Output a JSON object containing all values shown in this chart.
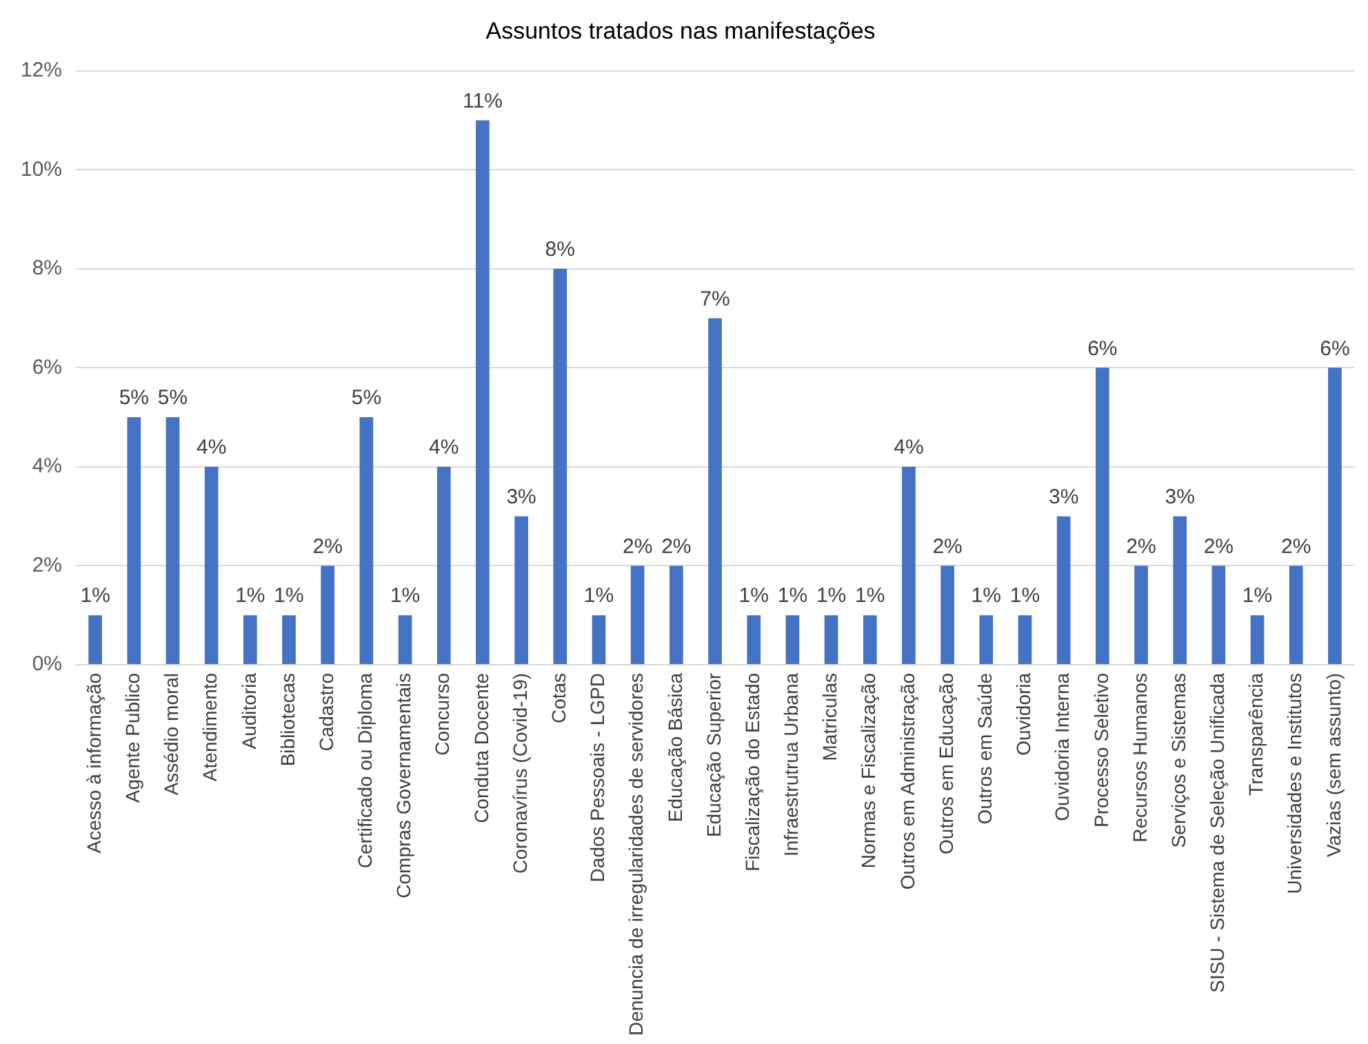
{
  "chart_data": {
    "type": "bar",
    "title": "Assuntos tratados nas manifestações",
    "categories": [
      "Acesso à informação",
      "Agente Publico",
      "Assédio moral",
      "Atendimento",
      "Auditoria",
      "Bibliotecas",
      "Cadastro",
      "Certificado ou Diploma",
      "Compras Governamentais",
      "Concurso",
      "Conduta Docente",
      "Coronavírus (Covid-19)",
      "Cotas",
      "Dados Pessoais - LGPD",
      "Denuncia de irregularidades de servidores",
      "Educação Básica",
      "Educação Superior",
      "Fiscalização do Estado",
      "Infraestrutrua Urbana",
      "Matriculas",
      "Normas e Fiscalização",
      "Outros em Administração",
      "Outros em Educação",
      "Outros em Saúde",
      "Ouvidoria",
      "Ouvidoria Interna",
      "Processo Seletivo",
      "Recursos Humanos",
      "Serviços e Sistemas",
      "SISU - Sistema de Seleção Unificada",
      "Transparência",
      "Universidades e Institutos",
      "Vazias (sem assunto)"
    ],
    "values": [
      1,
      5,
      5,
      4,
      1,
      1,
      2,
      5,
      1,
      4,
      11,
      3,
      8,
      1,
      2,
      2,
      7,
      1,
      1,
      1,
      1,
      4,
      2,
      1,
      1,
      3,
      6,
      2,
      3,
      2,
      1,
      2,
      6
    ],
    "value_labels": [
      "1%",
      "5%",
      "5%",
      "4%",
      "1%",
      "1%",
      "2%",
      "5%",
      "1%",
      "4%",
      "11%",
      "3%",
      "8%",
      "1%",
      "2%",
      "2%",
      "7%",
      "1%",
      "1%",
      "1%",
      "1%",
      "4%",
      "2%",
      "1%",
      "1%",
      "3%",
      "6%",
      "2%",
      "3%",
      "2%",
      "1%",
      "2%",
      "6%"
    ],
    "color": "#4472c4",
    "ylim": [
      0,
      12
    ],
    "yticks": [
      {
        "value": 0,
        "label": "0%"
      },
      {
        "value": 2,
        "label": "2%"
      },
      {
        "value": 4,
        "label": "4%"
      },
      {
        "value": 6,
        "label": "6%"
      },
      {
        "value": 8,
        "label": "8%"
      },
      {
        "value": 10,
        "label": "10%"
      },
      {
        "value": 12,
        "label": "12%"
      }
    ],
    "grid": "y",
    "legend": false
  }
}
